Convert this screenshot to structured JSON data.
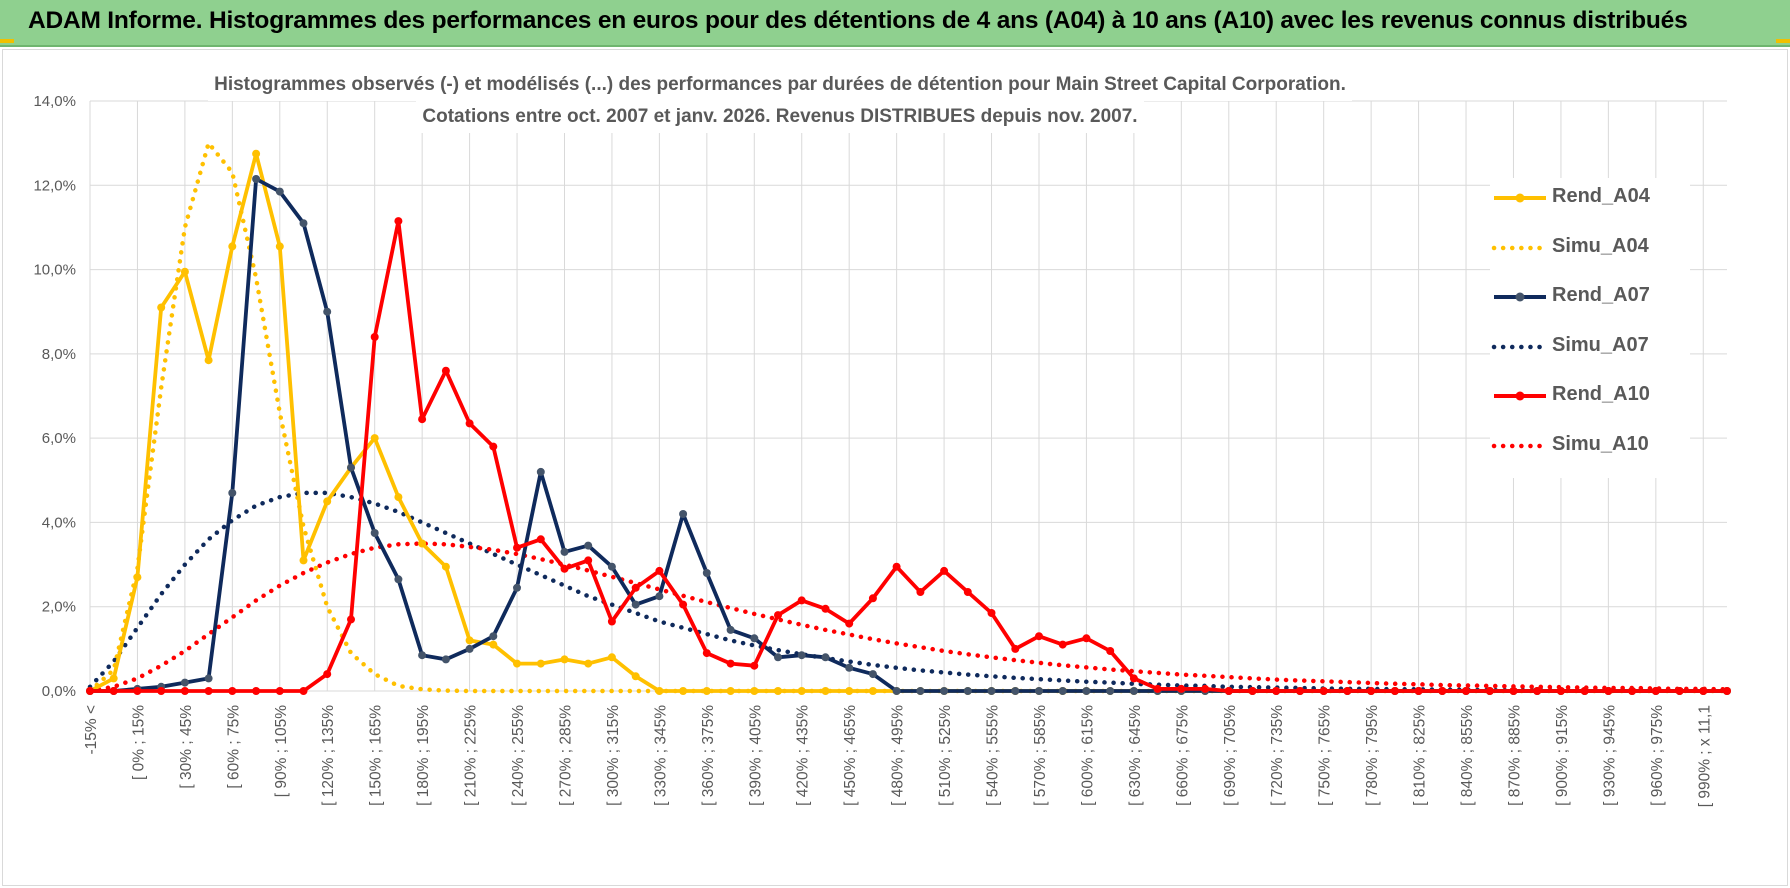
{
  "banner": {
    "title": "ADAM Informe. Histogrammes des performances en euros pour des détentions de 4 ans (A04) à 10 ans (A10) avec les revenus connus distribués"
  },
  "colors": {
    "banner_bg": "#8fd08f",
    "a04": "#ffc000",
    "a07": "#0f2a5c",
    "a07_marker": "#44546a",
    "a10": "#ff0000",
    "grid": "#d9d9d9",
    "axis_text": "#595959"
  },
  "chart_data": {
    "type": "line",
    "title": "Histogrammes observés (-) et modélisés (...) des performances par durées de détention pour Main Street Capital Corporation.",
    "subtitle": "Cotations entre oct. 2007 et janv. 2026. Revenus DISTRIBUES depuis nov. 2007.",
    "xlabel": "",
    "ylabel": "",
    "ylim": [
      0,
      14
    ],
    "y_ticks": [
      "0,0%",
      "2,0%",
      "4,0%",
      "6,0%",
      "8,0%",
      "10,0%",
      "12,0%",
      "14,0%"
    ],
    "x_count": 70,
    "x_tick_labels": [
      "-15% <",
      "[ 0% ; 15%",
      "[ 30% ; 45%",
      "[ 60% ; 75%",
      "[ 90% ; 105%",
      "[ 120% ; 135%",
      "[ 150% ; 165%",
      "[ 180% ; 195%",
      "[ 210% ; 225%",
      "[ 240% ; 255%",
      "[ 270% ; 285%",
      "[ 300% ; 315%",
      "[ 330% ; 345%",
      "[ 360% ; 375%",
      "[ 390% ; 405%",
      "[ 420% ; 435%",
      "[ 450% ; 465%",
      "[ 480% ; 495%",
      "[ 510% ; 525%",
      "[ 540% ; 555%",
      "[ 570% ; 585%",
      "[ 600% ; 615%",
      "[ 630% ; 645%",
      "[ 660% ; 675%",
      "[ 690% ; 705%",
      "[ 720% ; 735%",
      "[ 750% ; 765%",
      "[ 780% ; 795%",
      "[ 810% ; 825%",
      "[ 840% ; 855%",
      "[ 870% ; 885%",
      "[ 900% ; 915%",
      "[ 930% ; 945%",
      "[ 960% ; 975%",
      "[ 990% ; x 11,1"
    ],
    "legend_position": "right",
    "series": [
      {
        "name": "Rend_A04",
        "style": "solid",
        "color": "#ffc000",
        "marker": true,
        "values": [
          0,
          0.3,
          2.7,
          9.1,
          9.95,
          7.85,
          10.55,
          12.75,
          10.55,
          3.1,
          4.5,
          5.3,
          6.0,
          4.6,
          3.5,
          2.95,
          1.2,
          1.1,
          0.65,
          0.65,
          0.75,
          0.65,
          0.8,
          0.35,
          0,
          0,
          0,
          0,
          0,
          0,
          0,
          0,
          0,
          0,
          0,
          0,
          0,
          0,
          0,
          0,
          0,
          0,
          0,
          0,
          0,
          0,
          0,
          0,
          0,
          0,
          0,
          0,
          0,
          0,
          0,
          0,
          0,
          0,
          0,
          0,
          0,
          0,
          0,
          0,
          0,
          0,
          0,
          0,
          0,
          0
        ]
      },
      {
        "name": "Simu_A04",
        "style": "dotted",
        "color": "#ffc000",
        "marker": false,
        "values": [
          0,
          0.5,
          2.9,
          7.2,
          11.0,
          13.0,
          12.3,
          9.8,
          6.6,
          3.9,
          2.0,
          0.9,
          0.4,
          0.12,
          0.04,
          0.01,
          0,
          0,
          0,
          0,
          0,
          0,
          0,
          0,
          0,
          0,
          0,
          0,
          0,
          0,
          0,
          0,
          0,
          0,
          0,
          0,
          0,
          0,
          0,
          0,
          0,
          0,
          0,
          0,
          0,
          0,
          0,
          0,
          0,
          0,
          0,
          0,
          0,
          0,
          0,
          0,
          0,
          0,
          0,
          0,
          0,
          0,
          0,
          0,
          0,
          0,
          0,
          0,
          0,
          0
        ]
      },
      {
        "name": "Rend_A07",
        "style": "solid",
        "color": "#0f2a5c",
        "marker": true,
        "values": [
          0,
          0,
          0.05,
          0.1,
          0.2,
          0.3,
          4.7,
          12.15,
          11.85,
          11.1,
          9.0,
          5.3,
          3.75,
          2.65,
          0.85,
          0.75,
          1.0,
          1.3,
          2.45,
          5.2,
          3.3,
          3.45,
          2.95,
          2.05,
          2.25,
          4.2,
          2.8,
          1.45,
          1.25,
          0.8,
          0.85,
          0.8,
          0.55,
          0.4,
          0,
          0,
          0,
          0,
          0,
          0,
          0,
          0,
          0,
          0,
          0,
          0,
          0,
          0,
          0,
          0,
          0,
          0,
          0,
          0,
          0,
          0,
          0,
          0,
          0,
          0,
          0,
          0,
          0,
          0,
          0,
          0,
          0,
          0,
          0,
          0
        ]
      },
      {
        "name": "Simu_A07",
        "style": "dotted",
        "color": "#0f2a5c",
        "marker": false,
        "values": [
          0.1,
          0.7,
          1.5,
          2.3,
          3.0,
          3.6,
          4.05,
          4.4,
          4.6,
          4.7,
          4.7,
          4.6,
          4.45,
          4.25,
          4.0,
          3.75,
          3.5,
          3.25,
          3.0,
          2.75,
          2.5,
          2.25,
          2.05,
          1.85,
          1.65,
          1.5,
          1.35,
          1.2,
          1.08,
          0.97,
          0.87,
          0.78,
          0.7,
          0.62,
          0.55,
          0.49,
          0.44,
          0.39,
          0.35,
          0.31,
          0.28,
          0.25,
          0.22,
          0.2,
          0.17,
          0.15,
          0.13,
          0.12,
          0.1,
          0.09,
          0.08,
          0.07,
          0.06,
          0.05,
          0.05,
          0.04,
          0.04,
          0.03,
          0.03,
          0.02,
          0.02,
          0.02,
          0.02,
          0.01,
          0.01,
          0.01,
          0.01,
          0.01,
          0.01,
          0
        ]
      },
      {
        "name": "Rend_A10",
        "style": "solid",
        "color": "#ff0000",
        "marker": true,
        "values": [
          0,
          0,
          0,
          0,
          0,
          0,
          0,
          0,
          0,
          0,
          0.4,
          1.7,
          8.4,
          11.15,
          6.45,
          7.6,
          6.35,
          5.8,
          3.4,
          3.6,
          2.9,
          3.1,
          1.65,
          2.45,
          2.85,
          2.05,
          0.9,
          0.65,
          0.6,
          1.8,
          2.15,
          1.95,
          1.6,
          2.2,
          2.95,
          2.35,
          2.85,
          2.35,
          1.85,
          1.0,
          1.3,
          1.1,
          1.25,
          0.95,
          0.3,
          0.05,
          0.05,
          0.05,
          0,
          0,
          0,
          0,
          0,
          0,
          0,
          0,
          0,
          0,
          0,
          0,
          0,
          0,
          0,
          0,
          0,
          0,
          0,
          0,
          0,
          0
        ]
      },
      {
        "name": "Simu_A10",
        "style": "dotted",
        "color": "#ff0000",
        "marker": false,
        "values": [
          0,
          0.1,
          0.3,
          0.6,
          0.95,
          1.35,
          1.75,
          2.15,
          2.5,
          2.8,
          3.05,
          3.25,
          3.4,
          3.48,
          3.5,
          3.48,
          3.42,
          3.35,
          3.25,
          3.13,
          3.0,
          2.86,
          2.71,
          2.56,
          2.41,
          2.26,
          2.11,
          1.97,
          1.83,
          1.7,
          1.57,
          1.45,
          1.34,
          1.23,
          1.13,
          1.04,
          0.95,
          0.87,
          0.8,
          0.73,
          0.67,
          0.61,
          0.56,
          0.51,
          0.47,
          0.43,
          0.39,
          0.36,
          0.33,
          0.3,
          0.27,
          0.25,
          0.23,
          0.21,
          0.19,
          0.17,
          0.16,
          0.14,
          0.13,
          0.12,
          0.11,
          0.1,
          0.09,
          0.08,
          0.07,
          0.07,
          0.06,
          0.05,
          0.05,
          0.04
        ]
      }
    ]
  }
}
